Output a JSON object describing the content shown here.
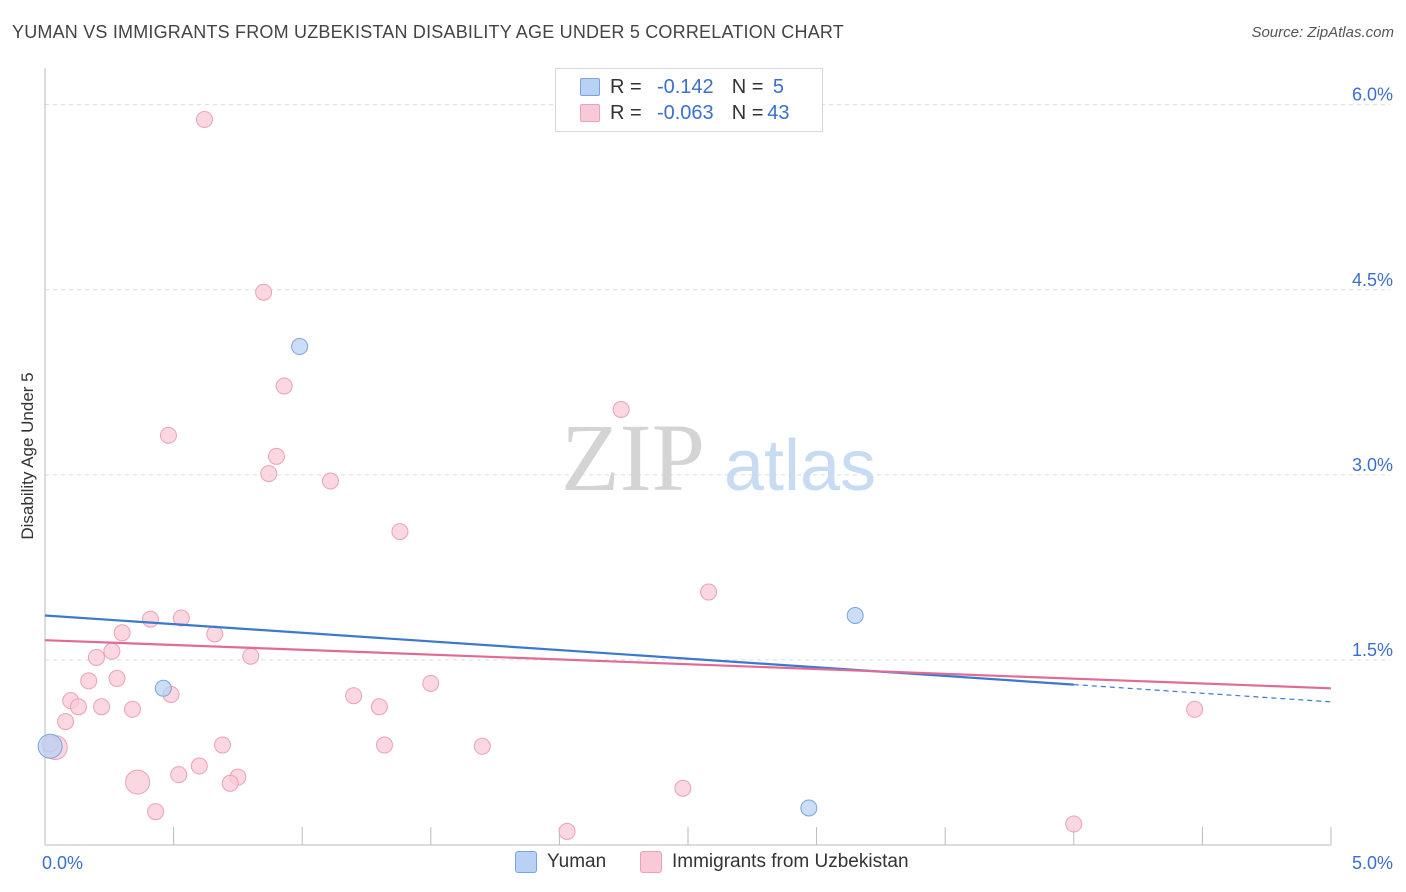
{
  "title": "YUMAN VS IMMIGRANTS FROM UZBEKISTAN DISABILITY AGE UNDER 5 CORRELATION CHART",
  "source": "Source: ZipAtlas.com",
  "watermark": {
    "zip": "ZIP",
    "atlas": "atlas"
  },
  "legend": {
    "rows": [
      {
        "r_label": "R =",
        "r_value": "-0.142",
        "n_label": "N =",
        "n_value": "5"
      },
      {
        "r_label": "R =",
        "r_value": "-0.063",
        "n_label": "N =",
        "n_value": "43"
      }
    ]
  },
  "bottom_legend": {
    "series1": "Yuman",
    "series2": "Immigrants from Uzbekistan"
  },
  "colors": {
    "yuman_fill": "#b9d1f4",
    "yuman_stroke": "#7ba3df",
    "yuman_line": "#3b78cf",
    "uzb_fill": "#f8c9d7",
    "uzb_stroke": "#eca1b8",
    "uzb_line": "#e06c95",
    "tick_label": "#3a6fd0",
    "grid": "#dcdcdc"
  },
  "chart_data": {
    "type": "scatter",
    "title": "YUMAN VS IMMIGRANTS FROM UZBEKISTAN DISABILITY AGE UNDER 5 CORRELATION CHART",
    "xlabel": "",
    "ylabel": "Disability Age Under 5",
    "xlim": [
      0,
      5
    ],
    "ylim": [
      0,
      6.2
    ],
    "x_tick_labels": [
      {
        "value": 0,
        "label": "0.0%"
      },
      {
        "value": 5,
        "label": "5.0%"
      }
    ],
    "y_tick_labels": [
      {
        "value": 1.5,
        "label": "1.5%"
      },
      {
        "value": 3.0,
        "label": "3.0%"
      },
      {
        "value": 4.5,
        "label": "4.5%"
      },
      {
        "value": 6.0,
        "label": "6.0%"
      }
    ],
    "x_minor_ticks": [
      0.5,
      1.0,
      1.5,
      2.0,
      2.5,
      3.0,
      3.5,
      4.0,
      4.5,
      5.0
    ],
    "series": [
      {
        "name": "Yuman",
        "points": [
          {
            "x": 0.02,
            "y": 0.8,
            "size": "large"
          },
          {
            "x": 0.46,
            "y": 1.27,
            "size": "normal"
          },
          {
            "x": 0.99,
            "y": 4.04,
            "size": "normal"
          },
          {
            "x": 2.97,
            "y": 0.3,
            "size": "normal"
          },
          {
            "x": 3.15,
            "y": 1.86,
            "size": "normal"
          }
        ],
        "trend": {
          "x0": 0,
          "y0": 1.86,
          "x1": 4.0,
          "y1": 1.3,
          "dash_to_x": 5.0,
          "dash_to_y": 1.16
        }
      },
      {
        "name": "Immigrants from Uzbekistan",
        "points": [
          {
            "x": 0.62,
            "y": 5.88,
            "size": "normal"
          },
          {
            "x": 0.85,
            "y": 4.48,
            "size": "normal"
          },
          {
            "x": 0.93,
            "y": 3.72,
            "size": "normal"
          },
          {
            "x": 0.48,
            "y": 3.32,
            "size": "normal"
          },
          {
            "x": 0.9,
            "y": 3.15,
            "size": "normal"
          },
          {
            "x": 0.87,
            "y": 3.01,
            "size": "normal"
          },
          {
            "x": 1.11,
            "y": 2.95,
            "size": "normal"
          },
          {
            "x": 1.38,
            "y": 2.54,
            "size": "normal"
          },
          {
            "x": 2.24,
            "y": 3.53,
            "size": "normal"
          },
          {
            "x": 2.58,
            "y": 2.05,
            "size": "normal"
          },
          {
            "x": 0.41,
            "y": 1.83,
            "size": "normal"
          },
          {
            "x": 0.53,
            "y": 1.84,
            "size": "normal"
          },
          {
            "x": 0.3,
            "y": 1.72,
            "size": "normal"
          },
          {
            "x": 0.66,
            "y": 1.71,
            "size": "normal"
          },
          {
            "x": 0.26,
            "y": 1.57,
            "size": "normal"
          },
          {
            "x": 0.2,
            "y": 1.52,
            "size": "normal"
          },
          {
            "x": 0.8,
            "y": 1.53,
            "size": "normal"
          },
          {
            "x": 0.17,
            "y": 1.33,
            "size": "normal"
          },
          {
            "x": 0.28,
            "y": 1.35,
            "size": "normal"
          },
          {
            "x": 1.5,
            "y": 1.31,
            "size": "normal"
          },
          {
            "x": 0.49,
            "y": 1.22,
            "size": "normal"
          },
          {
            "x": 1.2,
            "y": 1.21,
            "size": "normal"
          },
          {
            "x": 0.1,
            "y": 1.17,
            "size": "normal"
          },
          {
            "x": 0.13,
            "y": 1.12,
            "size": "normal"
          },
          {
            "x": 0.22,
            "y": 1.12,
            "size": "normal"
          },
          {
            "x": 0.34,
            "y": 1.1,
            "size": "normal"
          },
          {
            "x": 1.3,
            "y": 1.12,
            "size": "normal"
          },
          {
            "x": 0.08,
            "y": 1.0,
            "size": "normal"
          },
          {
            "x": 0.69,
            "y": 0.81,
            "size": "normal"
          },
          {
            "x": 1.32,
            "y": 0.81,
            "size": "normal"
          },
          {
            "x": 1.7,
            "y": 0.8,
            "size": "normal"
          },
          {
            "x": 0.04,
            "y": 0.79,
            "size": "large"
          },
          {
            "x": 0.6,
            "y": 0.64,
            "size": "normal"
          },
          {
            "x": 0.52,
            "y": 0.57,
            "size": "normal"
          },
          {
            "x": 0.75,
            "y": 0.55,
            "size": "normal"
          },
          {
            "x": 0.72,
            "y": 0.5,
            "size": "normal"
          },
          {
            "x": 0.36,
            "y": 0.51,
            "size": "large"
          },
          {
            "x": 0.43,
            "y": 0.27,
            "size": "normal"
          },
          {
            "x": 2.48,
            "y": 0.46,
            "size": "normal"
          },
          {
            "x": 2.03,
            "y": 0.11,
            "size": "normal"
          },
          {
            "x": 4.0,
            "y": 0.17,
            "size": "normal"
          },
          {
            "x": 4.47,
            "y": 1.1,
            "size": "normal"
          },
          {
            "x": 0.02,
            "y": 0.82,
            "size": "normal"
          }
        ],
        "trend": {
          "x0": 0,
          "y0": 1.66,
          "x1": 5.0,
          "y1": 1.27
        }
      }
    ]
  }
}
